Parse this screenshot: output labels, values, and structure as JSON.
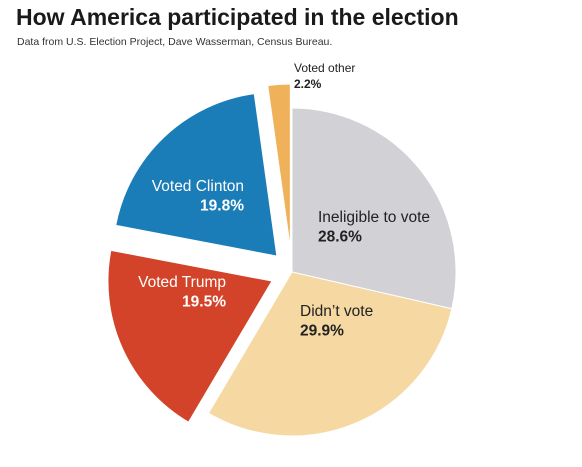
{
  "header": {
    "title": "How America participated in the election",
    "subtitle": "Data from U.S. Election Project, Dave Wasserman, Census Bureau."
  },
  "chart_data": {
    "type": "pie",
    "slices": [
      {
        "key": "ineligible",
        "label": "Ineligible to vote",
        "value": 28.6,
        "display": "28.6%",
        "color": "#d2d2d6",
        "text_color": "#222222",
        "exploded": false
      },
      {
        "key": "didnt-vote",
        "label": "Didn’t vote",
        "value": 29.9,
        "display": "29.9%",
        "color": "#f6d8a2",
        "text_color": "#222222",
        "exploded": false
      },
      {
        "key": "trump",
        "label": "Voted Trump",
        "value": 19.5,
        "display": "19.5%",
        "color": "#d2432a",
        "text_color": "#ffffff",
        "exploded": true
      },
      {
        "key": "clinton",
        "label": "Voted Clinton",
        "value": 19.8,
        "display": "19.8%",
        "color": "#1b7db8",
        "text_color": "#ffffff",
        "exploded": true
      },
      {
        "key": "other",
        "label": "Voted other",
        "value": 2.2,
        "display": "2.2%",
        "color": "#efb25a",
        "text_color": "#222222",
        "exploded": true
      }
    ],
    "start": "12 o'clock",
    "direction": "clockwise",
    "legend": "none"
  }
}
